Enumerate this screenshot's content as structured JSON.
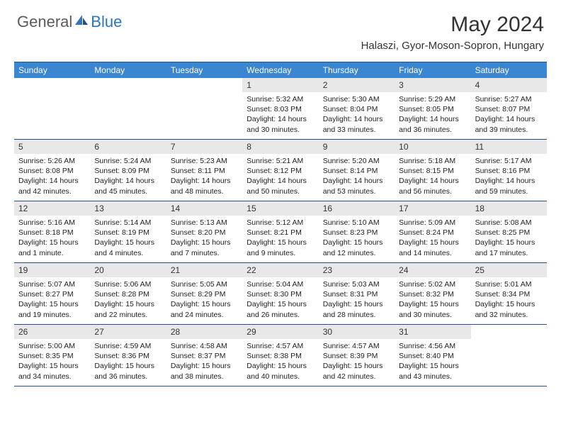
{
  "brand": {
    "general": "General",
    "blue": "Blue"
  },
  "title": "May 2024",
  "location": "Halaszi, Gyor-Moson-Sopron, Hungary",
  "colors": {
    "header_bar": "#3a86d0",
    "border": "#274e8e",
    "daynum_bg": "#e8e8e8",
    "text": "#333333",
    "logo_gray": "#5b5b5b",
    "logo_blue": "#2b75c4"
  },
  "dow": [
    "Sunday",
    "Monday",
    "Tuesday",
    "Wednesday",
    "Thursday",
    "Friday",
    "Saturday"
  ],
  "weeks": [
    [
      {
        "empty": true
      },
      {
        "empty": true
      },
      {
        "empty": true
      },
      {
        "num": "1",
        "sr": "Sunrise: 5:32 AM",
        "ss": "Sunset: 8:03 PM",
        "dl": "Daylight: 14 hours and 30 minutes."
      },
      {
        "num": "2",
        "sr": "Sunrise: 5:30 AM",
        "ss": "Sunset: 8:04 PM",
        "dl": "Daylight: 14 hours and 33 minutes."
      },
      {
        "num": "3",
        "sr": "Sunrise: 5:29 AM",
        "ss": "Sunset: 8:05 PM",
        "dl": "Daylight: 14 hours and 36 minutes."
      },
      {
        "num": "4",
        "sr": "Sunrise: 5:27 AM",
        "ss": "Sunset: 8:07 PM",
        "dl": "Daylight: 14 hours and 39 minutes."
      }
    ],
    [
      {
        "num": "5",
        "sr": "Sunrise: 5:26 AM",
        "ss": "Sunset: 8:08 PM",
        "dl": "Daylight: 14 hours and 42 minutes."
      },
      {
        "num": "6",
        "sr": "Sunrise: 5:24 AM",
        "ss": "Sunset: 8:09 PM",
        "dl": "Daylight: 14 hours and 45 minutes."
      },
      {
        "num": "7",
        "sr": "Sunrise: 5:23 AM",
        "ss": "Sunset: 8:11 PM",
        "dl": "Daylight: 14 hours and 48 minutes."
      },
      {
        "num": "8",
        "sr": "Sunrise: 5:21 AM",
        "ss": "Sunset: 8:12 PM",
        "dl": "Daylight: 14 hours and 50 minutes."
      },
      {
        "num": "9",
        "sr": "Sunrise: 5:20 AM",
        "ss": "Sunset: 8:14 PM",
        "dl": "Daylight: 14 hours and 53 minutes."
      },
      {
        "num": "10",
        "sr": "Sunrise: 5:18 AM",
        "ss": "Sunset: 8:15 PM",
        "dl": "Daylight: 14 hours and 56 minutes."
      },
      {
        "num": "11",
        "sr": "Sunrise: 5:17 AM",
        "ss": "Sunset: 8:16 PM",
        "dl": "Daylight: 14 hours and 59 minutes."
      }
    ],
    [
      {
        "num": "12",
        "sr": "Sunrise: 5:16 AM",
        "ss": "Sunset: 8:18 PM",
        "dl": "Daylight: 15 hours and 1 minute."
      },
      {
        "num": "13",
        "sr": "Sunrise: 5:14 AM",
        "ss": "Sunset: 8:19 PM",
        "dl": "Daylight: 15 hours and 4 minutes."
      },
      {
        "num": "14",
        "sr": "Sunrise: 5:13 AM",
        "ss": "Sunset: 8:20 PM",
        "dl": "Daylight: 15 hours and 7 minutes."
      },
      {
        "num": "15",
        "sr": "Sunrise: 5:12 AM",
        "ss": "Sunset: 8:21 PM",
        "dl": "Daylight: 15 hours and 9 minutes."
      },
      {
        "num": "16",
        "sr": "Sunrise: 5:10 AM",
        "ss": "Sunset: 8:23 PM",
        "dl": "Daylight: 15 hours and 12 minutes."
      },
      {
        "num": "17",
        "sr": "Sunrise: 5:09 AM",
        "ss": "Sunset: 8:24 PM",
        "dl": "Daylight: 15 hours and 14 minutes."
      },
      {
        "num": "18",
        "sr": "Sunrise: 5:08 AM",
        "ss": "Sunset: 8:25 PM",
        "dl": "Daylight: 15 hours and 17 minutes."
      }
    ],
    [
      {
        "num": "19",
        "sr": "Sunrise: 5:07 AM",
        "ss": "Sunset: 8:27 PM",
        "dl": "Daylight: 15 hours and 19 minutes."
      },
      {
        "num": "20",
        "sr": "Sunrise: 5:06 AM",
        "ss": "Sunset: 8:28 PM",
        "dl": "Daylight: 15 hours and 22 minutes."
      },
      {
        "num": "21",
        "sr": "Sunrise: 5:05 AM",
        "ss": "Sunset: 8:29 PM",
        "dl": "Daylight: 15 hours and 24 minutes."
      },
      {
        "num": "22",
        "sr": "Sunrise: 5:04 AM",
        "ss": "Sunset: 8:30 PM",
        "dl": "Daylight: 15 hours and 26 minutes."
      },
      {
        "num": "23",
        "sr": "Sunrise: 5:03 AM",
        "ss": "Sunset: 8:31 PM",
        "dl": "Daylight: 15 hours and 28 minutes."
      },
      {
        "num": "24",
        "sr": "Sunrise: 5:02 AM",
        "ss": "Sunset: 8:32 PM",
        "dl": "Daylight: 15 hours and 30 minutes."
      },
      {
        "num": "25",
        "sr": "Sunrise: 5:01 AM",
        "ss": "Sunset: 8:34 PM",
        "dl": "Daylight: 15 hours and 32 minutes."
      }
    ],
    [
      {
        "num": "26",
        "sr": "Sunrise: 5:00 AM",
        "ss": "Sunset: 8:35 PM",
        "dl": "Daylight: 15 hours and 34 minutes."
      },
      {
        "num": "27",
        "sr": "Sunrise: 4:59 AM",
        "ss": "Sunset: 8:36 PM",
        "dl": "Daylight: 15 hours and 36 minutes."
      },
      {
        "num": "28",
        "sr": "Sunrise: 4:58 AM",
        "ss": "Sunset: 8:37 PM",
        "dl": "Daylight: 15 hours and 38 minutes."
      },
      {
        "num": "29",
        "sr": "Sunrise: 4:57 AM",
        "ss": "Sunset: 8:38 PM",
        "dl": "Daylight: 15 hours and 40 minutes."
      },
      {
        "num": "30",
        "sr": "Sunrise: 4:57 AM",
        "ss": "Sunset: 8:39 PM",
        "dl": "Daylight: 15 hours and 42 minutes."
      },
      {
        "num": "31",
        "sr": "Sunrise: 4:56 AM",
        "ss": "Sunset: 8:40 PM",
        "dl": "Daylight: 15 hours and 43 minutes."
      },
      {
        "empty": true
      }
    ]
  ]
}
